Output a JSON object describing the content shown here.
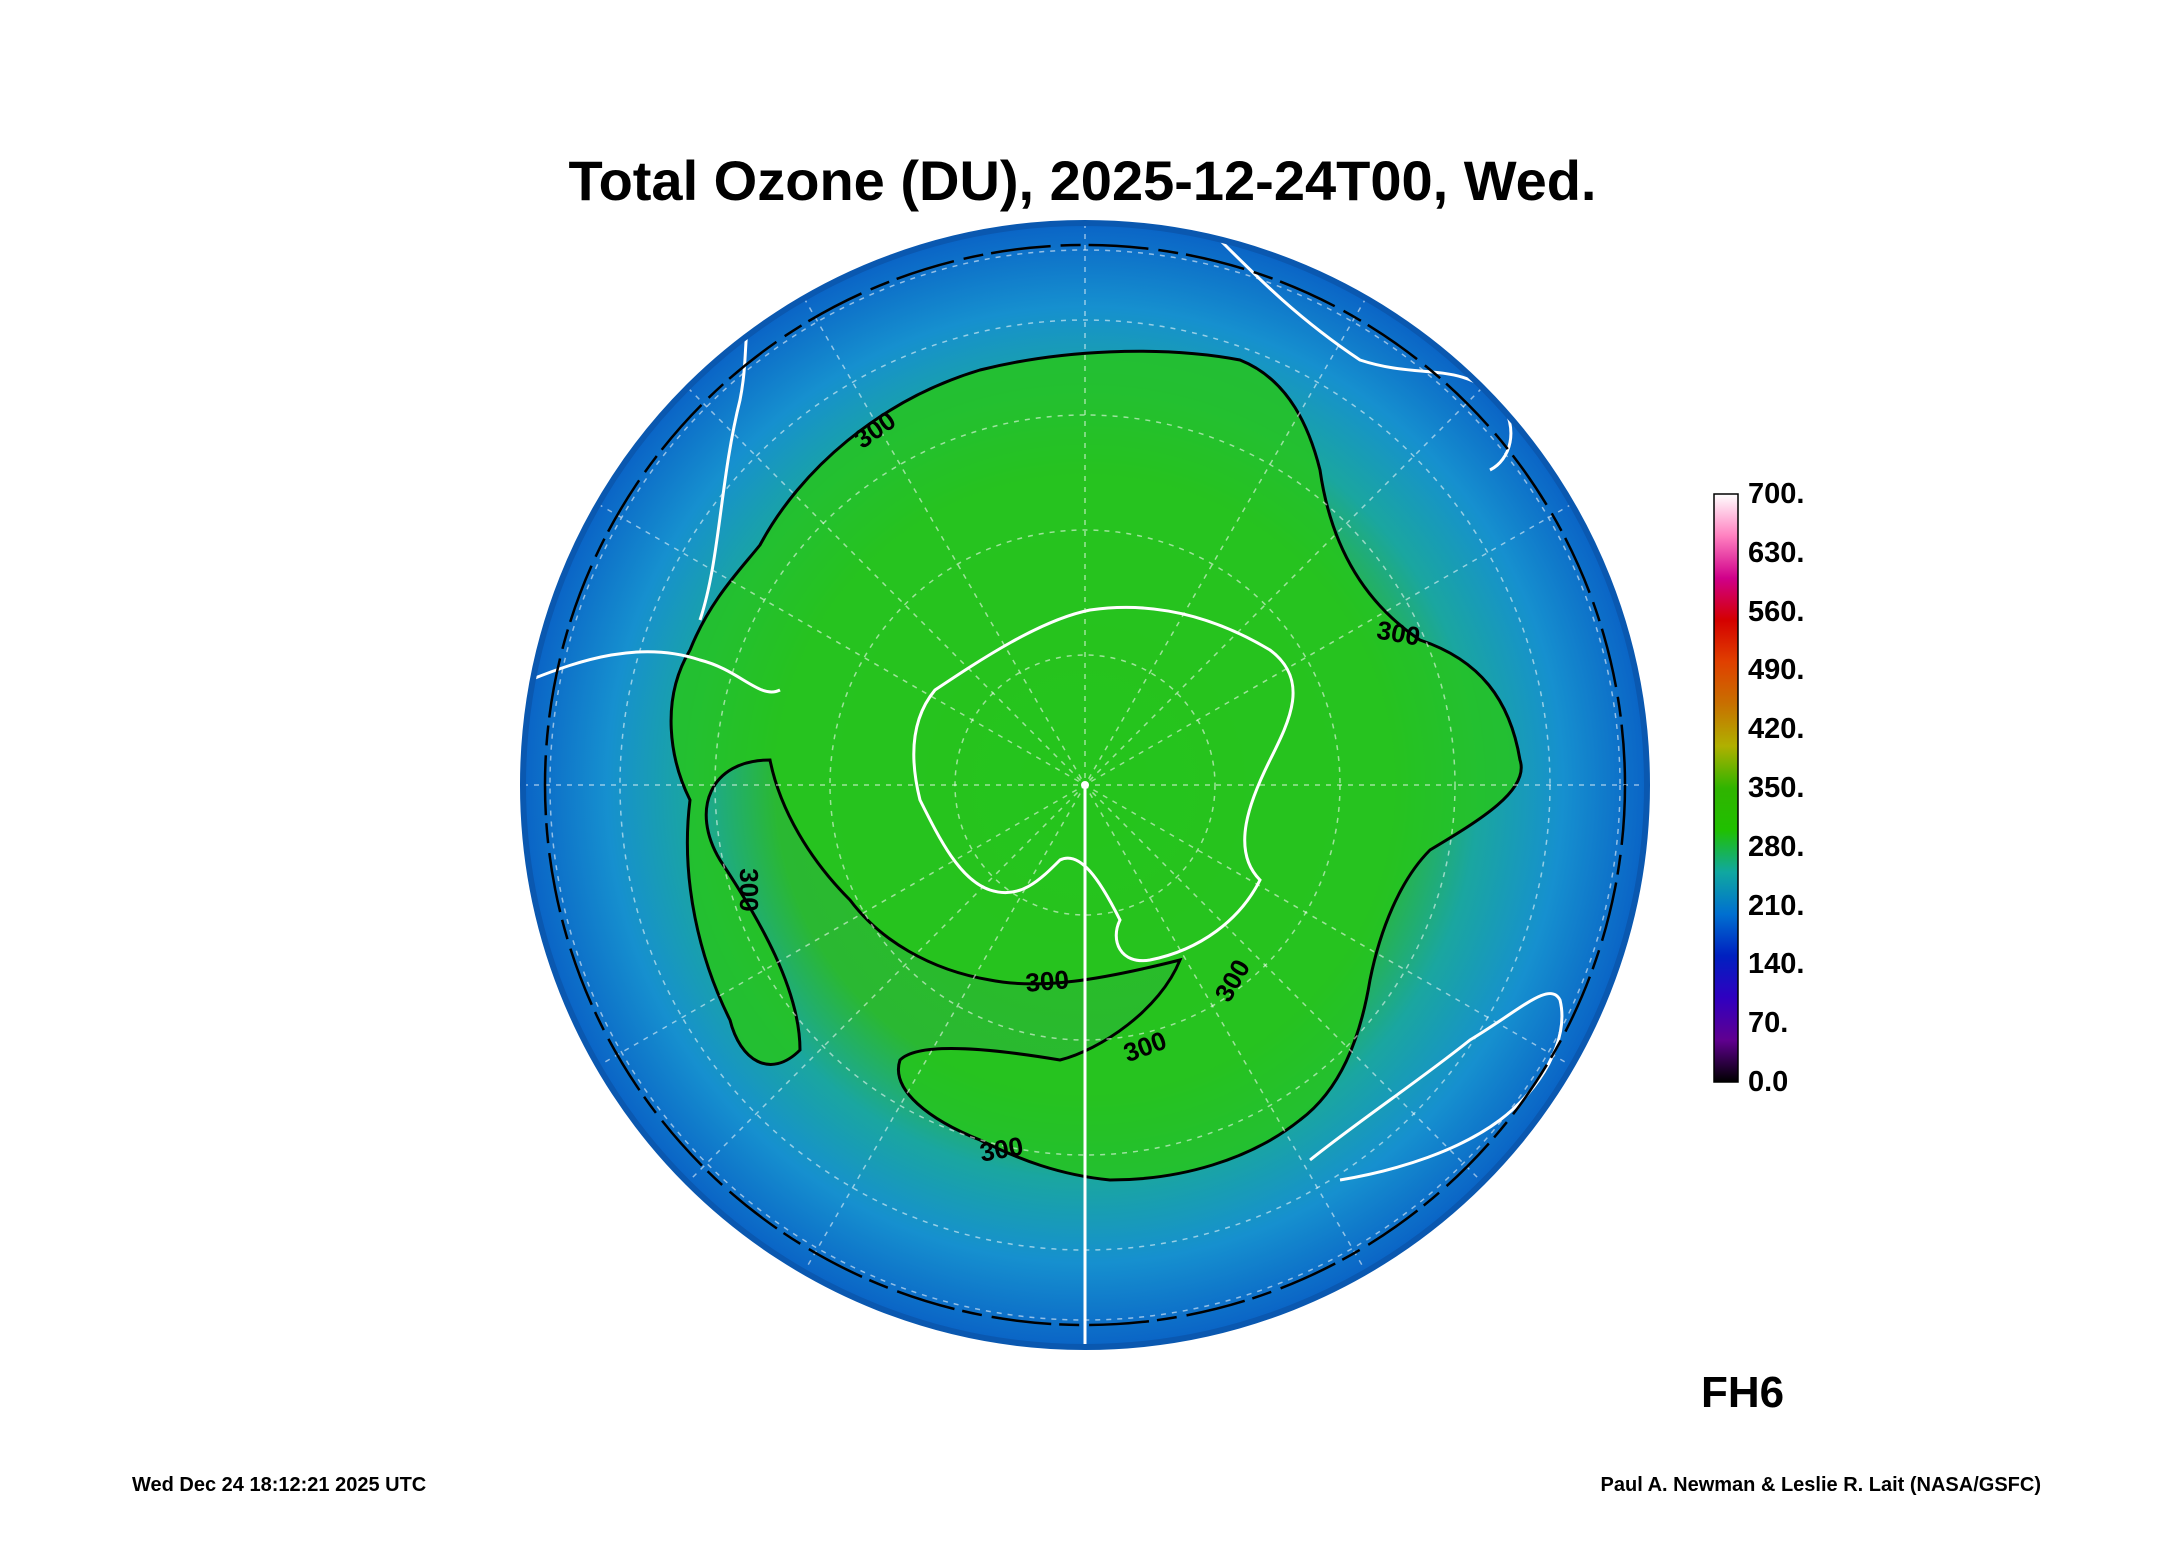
{
  "title": "Total Ozone (DU), 2025-12-24T00, Wed.",
  "forecast_hour": "FH6",
  "footer": {
    "timestamp": "Wed Dec 24 18:12:21 2025 UTC",
    "credit": "Paul A. Newman & Leslie R. Lait (NASA/GSFC)"
  },
  "colorbar": {
    "unit": "DU",
    "labels": [
      "700.",
      "630.",
      "560.",
      "490.",
      "420.",
      "350.",
      "280.",
      "210.",
      "140.",
      "70.",
      "0.0"
    ],
    "colors": [
      "#ffffff",
      "#ff80c0",
      "#d0008a",
      "#d40000",
      "#e04000",
      "#c87000",
      "#b0b000",
      "#30b400",
      "#20c000",
      "#10a8a0",
      "#0070d0",
      "#0020c0",
      "#3000c0",
      "#600090",
      "#000000"
    ]
  },
  "map": {
    "projection": "south polar orthographic",
    "contour_level": "300",
    "contour_labels": [
      "300",
      "300",
      "300",
      "300",
      "300",
      "300",
      "300"
    ],
    "colors": {
      "ocean_outer": "#0a68c8",
      "mid_blue": "#1690cf",
      "teal": "#18a7a8",
      "green_light": "#2db83a",
      "green": "#22c31a",
      "contour": "#000000",
      "coast": "#ffffff",
      "grid": "#ffffff"
    }
  }
}
